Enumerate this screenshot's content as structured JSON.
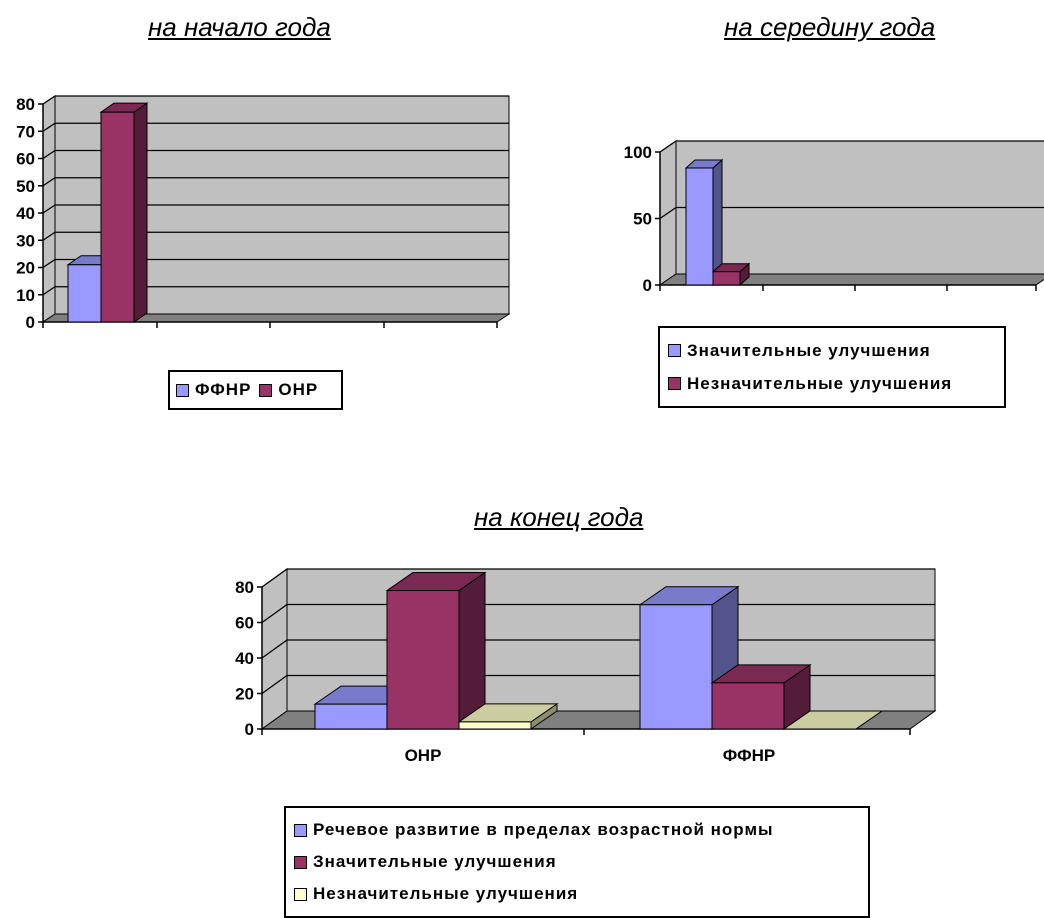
{
  "colors": {
    "wall": "#c0c0c0",
    "floor": "#808080",
    "series1": "#9999ff",
    "series2": "#993366",
    "series3": "#ffffcc"
  },
  "chart_data": [
    {
      "type": "bar",
      "title": "на начало года",
      "categories": [
        ""
      ],
      "series": [
        {
          "name": "ФФНР",
          "values": [
            21
          ]
        },
        {
          "name": "ОНР",
          "values": [
            77
          ]
        }
      ],
      "ylim": [
        0,
        80
      ],
      "yticks": [
        "0",
        "10",
        "20",
        "30",
        "40",
        "50",
        "60",
        "70",
        "80"
      ],
      "grid": true,
      "legend": "bottom"
    },
    {
      "type": "bar",
      "title": "на середину года",
      "categories": [
        ""
      ],
      "series": [
        {
          "name": "Значительные улучшения",
          "values": [
            88
          ]
        },
        {
          "name": "Незначительные улучшения",
          "values": [
            10
          ]
        }
      ],
      "ylim": [
        0,
        100
      ],
      "yticks": [
        "0",
        "50",
        "100"
      ],
      "grid": true,
      "legend": "bottom"
    },
    {
      "type": "bar",
      "title": "на конец года",
      "categories": [
        "ОНР",
        "ФФНР"
      ],
      "series": [
        {
          "name": "Речевое развитие в пределах возрастной нормы",
          "values": [
            14,
            70
          ]
        },
        {
          "name": "Значительные улучшения",
          "values": [
            78,
            26
          ]
        },
        {
          "name": "Незначительные улучшения",
          "values": [
            4,
            0
          ]
        }
      ],
      "ylim": [
        0,
        80
      ],
      "yticks": [
        "0",
        "20",
        "40",
        "60",
        "80"
      ],
      "grid": true,
      "legend": "bottom"
    }
  ]
}
